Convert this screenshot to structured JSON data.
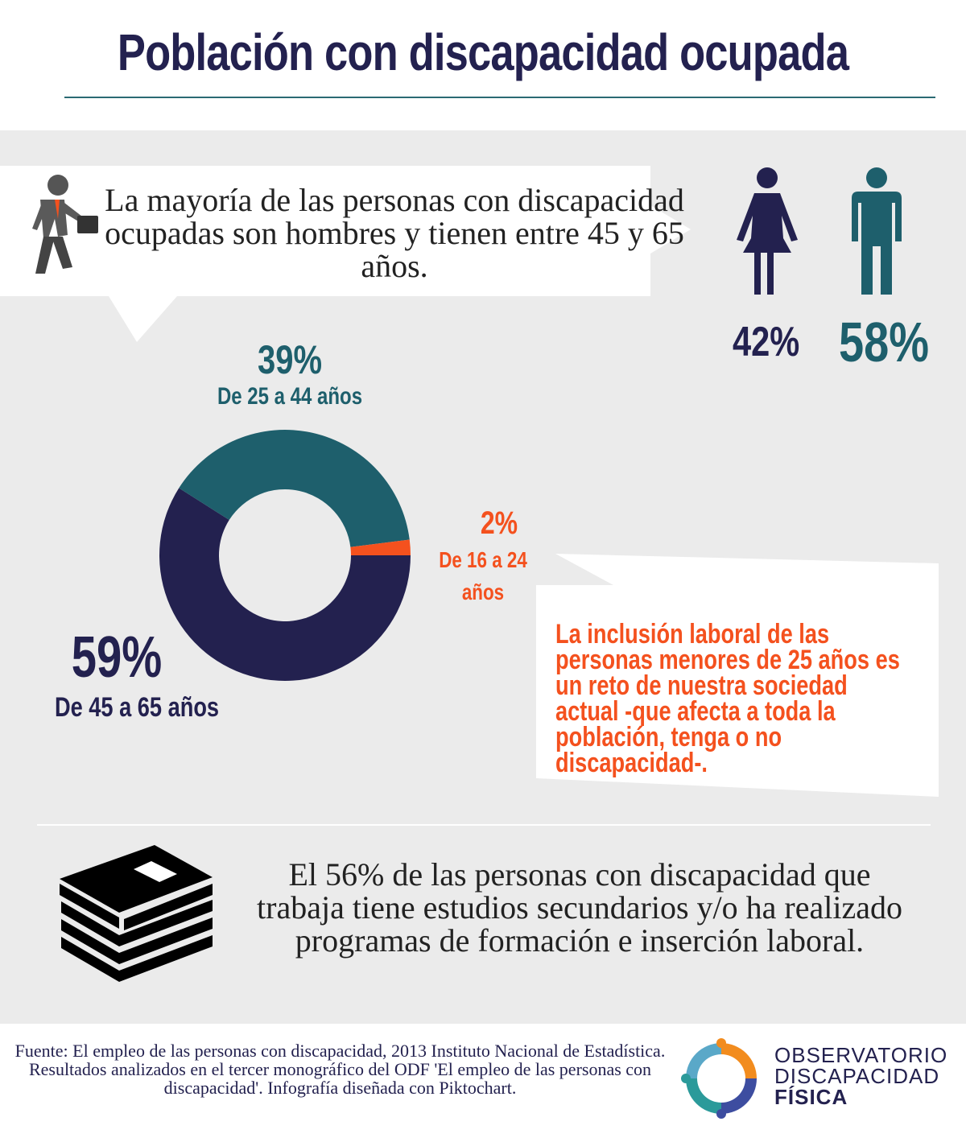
{
  "title": "Población con discapacidad ocupada",
  "intro_text": "La mayoría de las personas con discapacidad ocupadas son hombres y tienen entre 45 y 65 años.",
  "gender": {
    "female_pct": "42%",
    "male_pct": "58%",
    "colors": {
      "female": "#23214f",
      "male": "#1e5f6c"
    }
  },
  "chart_data": {
    "type": "pie",
    "style": "donut",
    "slices": [
      {
        "label": "De 45 a 65 años",
        "value": 59,
        "value_label": "59%",
        "color": "#23214f"
      },
      {
        "label": "De 25 a 44 años",
        "value": 39,
        "value_label": "39%",
        "color": "#1e5f6c"
      },
      {
        "label": "De 16 a 24 años",
        "value": 2,
        "value_label": "2%",
        "color": "#f4511e"
      }
    ]
  },
  "callout_text": "La inclusión laboral de las personas menores de 25 años es un reto de nuestra sociedad actual -que afecta a toda la población, tenga o no discapacidad-.",
  "education_text": "El 56% de las personas con discapacidad que trabaja tiene estudios secundarios y/o ha realizado programas de formación e inserción laboral.",
  "footer": {
    "source": "Fuente: El empleo de las personas con discapacidad, 2013 Instituto Nacional de Estadística. Resultados analizados en el tercer monográfico del ODF 'El empleo de las personas con discapacidad'. Infografía diseñada con Piktochart."
  },
  "logo": {
    "line1": "OBSERVATORIO",
    "line2": "DISCAPACIDAD",
    "line3": "FÍSICA",
    "colors": [
      "#f28c1e",
      "#2b9a9a",
      "#3d4da0",
      "#23214f"
    ]
  },
  "icons": [
    "businessman-icon",
    "woman-icon",
    "man-icon",
    "books-icon",
    "logo-ring-icon"
  ]
}
